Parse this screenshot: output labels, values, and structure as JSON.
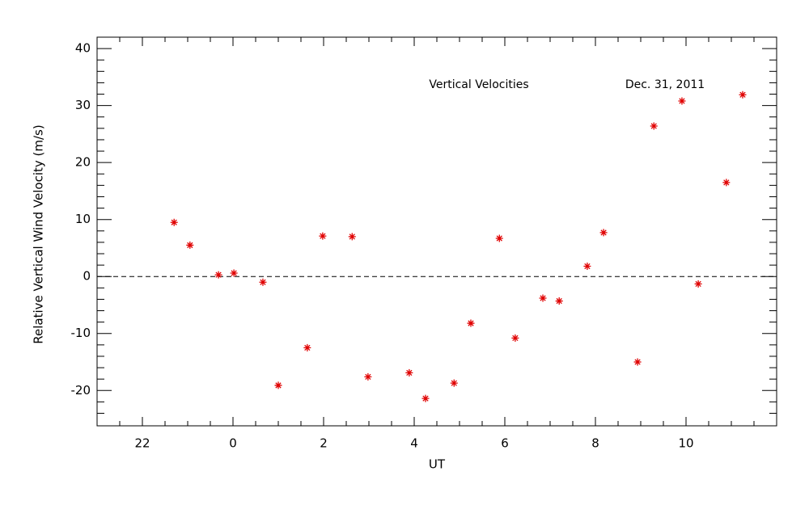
{
  "chart_data": {
    "type": "scatter",
    "annotations": [
      "Vertical Velocities",
      "Dec. 31, 2011"
    ],
    "x_label": "UT",
    "y_label": "Relative Vertical Wind Velocity (m/s)",
    "xlim": [
      -3,
      12
    ],
    "ylim": [
      -26.2,
      42
    ],
    "xticks": [
      {
        "value": -2,
        "label": "22"
      },
      0,
      2,
      4,
      6,
      8,
      10
    ],
    "yticks": [
      -20,
      -10,
      0,
      10,
      20,
      30,
      40
    ],
    "xminorticks": [
      -2.5,
      -1.5,
      -1,
      -0.5,
      0.5,
      1,
      1.5,
      2.5,
      3,
      3.5,
      4.5,
      5,
      5.5,
      6.5,
      7,
      7.5,
      8.5,
      9,
      9.5,
      10.5,
      11,
      11.5
    ],
    "yminorticks": [
      -24,
      -22,
      -18,
      -16,
      -14,
      -12,
      -8,
      -6,
      -4,
      -2,
      2,
      4,
      6,
      8,
      12,
      14,
      16,
      18,
      22,
      24,
      26,
      28,
      32,
      34,
      36,
      38
    ],
    "reference_line": 0,
    "series": [
      {
        "color": "#e00000",
        "x": [
          -1.3,
          -0.95,
          -0.32,
          0.02,
          0.66,
          1.0,
          1.64,
          1.98,
          2.63,
          2.98,
          3.89,
          4.25,
          4.88,
          5.25,
          5.88,
          6.23,
          6.84,
          7.2,
          7.82,
          8.18,
          8.93,
          9.29,
          9.91,
          10.27,
          10.89,
          11.25
        ],
        "values": [
          9.5,
          5.5,
          0.3,
          0.6,
          -1.0,
          -19.1,
          -12.5,
          7.1,
          7.0,
          -17.6,
          -16.9,
          -21.4,
          -18.7,
          -8.2,
          6.7,
          -10.8,
          -3.8,
          -4.3,
          1.8,
          7.7,
          -15.0,
          26.4,
          30.8,
          -1.3,
          16.5,
          31.9
        ]
      }
    ]
  }
}
